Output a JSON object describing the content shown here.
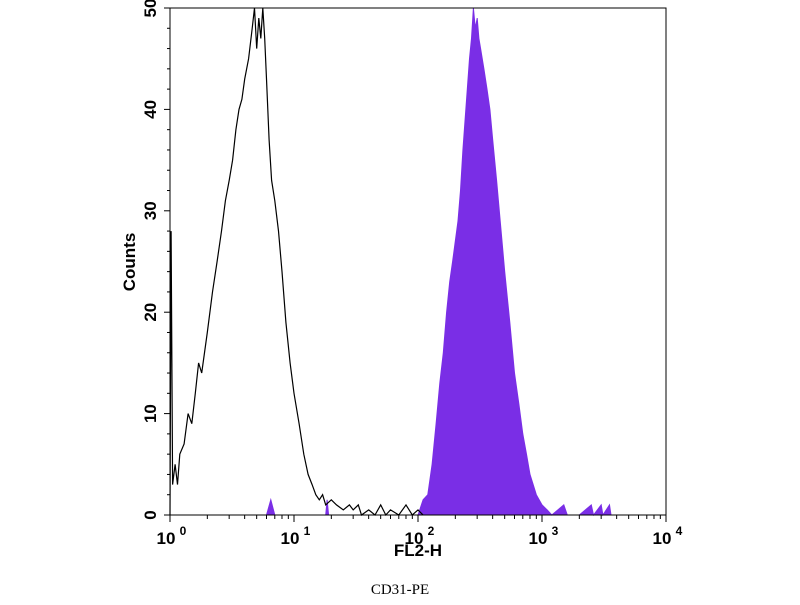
{
  "chart_data": {
    "type": "area",
    "xlabel": "FL2-H",
    "ylabel": "Counts",
    "caption": "CD31-PE",
    "x_scale": "log",
    "xlim": [
      1,
      10000
    ],
    "ylim": [
      0,
      50
    ],
    "x_ticks": [
      {
        "value": 1,
        "base": "10",
        "exp": "0"
      },
      {
        "value": 10,
        "base": "10",
        "exp": "1"
      },
      {
        "value": 100,
        "base": "10",
        "exp": "2"
      },
      {
        "value": 1000,
        "base": "10",
        "exp": "3"
      },
      {
        "value": 10000,
        "base": "10",
        "exp": "4"
      }
    ],
    "y_ticks": [
      "0",
      "10",
      "20",
      "30",
      "40",
      "50"
    ],
    "grid": false,
    "legend": "none",
    "series": [
      {
        "style": "outline",
        "color": "#000000",
        "points": [
          [
            1.0,
            0
          ],
          [
            1.02,
            28
          ],
          [
            1.05,
            3
          ],
          [
            1.1,
            5
          ],
          [
            1.15,
            3
          ],
          [
            1.2,
            6
          ],
          [
            1.3,
            7
          ],
          [
            1.4,
            10
          ],
          [
            1.5,
            9
          ],
          [
            1.6,
            12
          ],
          [
            1.7,
            15
          ],
          [
            1.8,
            14
          ],
          [
            2.0,
            18
          ],
          [
            2.2,
            22
          ],
          [
            2.4,
            25
          ],
          [
            2.6,
            28
          ],
          [
            2.8,
            31
          ],
          [
            3.0,
            33
          ],
          [
            3.2,
            35
          ],
          [
            3.4,
            38
          ],
          [
            3.6,
            40
          ],
          [
            3.8,
            41
          ],
          [
            4.0,
            43
          ],
          [
            4.3,
            45
          ],
          [
            4.6,
            48
          ],
          [
            4.8,
            50
          ],
          [
            5.0,
            46
          ],
          [
            5.2,
            49
          ],
          [
            5.4,
            47
          ],
          [
            5.6,
            50
          ],
          [
            5.8,
            47
          ],
          [
            6.0,
            43
          ],
          [
            6.3,
            37
          ],
          [
            6.6,
            33
          ],
          [
            7.0,
            31
          ],
          [
            7.5,
            28
          ],
          [
            8.0,
            24
          ],
          [
            8.6,
            19
          ],
          [
            9.3,
            15
          ],
          [
            10,
            12
          ],
          [
            11,
            9
          ],
          [
            12,
            6
          ],
          [
            13,
            4
          ],
          [
            14,
            3
          ],
          [
            15,
            2
          ],
          [
            16,
            1.5
          ],
          [
            17,
            2
          ],
          [
            18,
            1
          ],
          [
            20,
            1.5
          ],
          [
            22,
            1
          ],
          [
            25,
            0.5
          ],
          [
            28,
            1
          ],
          [
            30,
            0.5
          ],
          [
            33,
            1
          ],
          [
            35,
            0
          ],
          [
            40,
            0.5
          ],
          [
            45,
            0
          ],
          [
            50,
            1
          ],
          [
            55,
            0
          ],
          [
            60,
            0.5
          ],
          [
            70,
            0
          ],
          [
            80,
            1
          ],
          [
            90,
            0
          ],
          [
            100,
            0.5
          ],
          [
            110,
            0
          ]
        ]
      },
      {
        "style": "filled",
        "color": "#7a2ee6",
        "points": [
          [
            1.0,
            0
          ],
          [
            6.0,
            0
          ],
          [
            6.5,
            1.5
          ],
          [
            7.0,
            0
          ],
          [
            18,
            0
          ],
          [
            18.5,
            1.5
          ],
          [
            19,
            0
          ],
          [
            100,
            0
          ],
          [
            110,
            1.5
          ],
          [
            120,
            2
          ],
          [
            130,
            5
          ],
          [
            140,
            9
          ],
          [
            150,
            13
          ],
          [
            160,
            16
          ],
          [
            170,
            20
          ],
          [
            180,
            23
          ],
          [
            190,
            25
          ],
          [
            200,
            27
          ],
          [
            210,
            29
          ],
          [
            220,
            32
          ],
          [
            230,
            36
          ],
          [
            240,
            39
          ],
          [
            250,
            42
          ],
          [
            260,
            45
          ],
          [
            270,
            47
          ],
          [
            280,
            50
          ],
          [
            290,
            48
          ],
          [
            300,
            49
          ],
          [
            310,
            47
          ],
          [
            320,
            46
          ],
          [
            340,
            44
          ],
          [
            360,
            42
          ],
          [
            380,
            40
          ],
          [
            400,
            37
          ],
          [
            430,
            33
          ],
          [
            460,
            29
          ],
          [
            500,
            24
          ],
          [
            550,
            19
          ],
          [
            600,
            14
          ],
          [
            650,
            11
          ],
          [
            700,
            8
          ],
          [
            750,
            6
          ],
          [
            800,
            4
          ],
          [
            850,
            3
          ],
          [
            900,
            2
          ],
          [
            1000,
            1
          ],
          [
            1100,
            0.5
          ],
          [
            1200,
            0
          ],
          [
            1500,
            1
          ],
          [
            1600,
            0
          ],
          [
            2000,
            0
          ],
          [
            2500,
            1
          ],
          [
            2600,
            0
          ],
          [
            3000,
            1
          ],
          [
            3100,
            0
          ],
          [
            3500,
            1
          ],
          [
            3600,
            0
          ],
          [
            10000,
            0
          ]
        ]
      }
    ]
  }
}
